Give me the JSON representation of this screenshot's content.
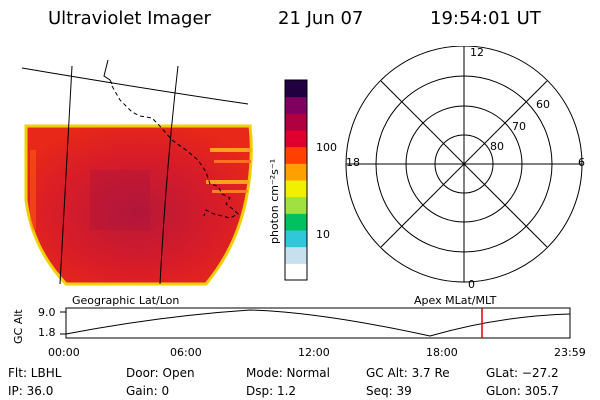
{
  "header": {
    "title": "Ultraviolet Imager",
    "date": "21 Jun 07",
    "time": "19:54:01 UT"
  },
  "colorbar": {
    "unit_label": "photon cm⁻²s⁻¹",
    "ticks": [
      "100",
      "10"
    ],
    "colors": [
      "#ffffff",
      "#c8e0ee",
      "#30c8d8",
      "#00c060",
      "#a0e040",
      "#f0f000",
      "#ffa000",
      "#ff4000",
      "#e00030",
      "#b00040",
      "#800060",
      "#200040"
    ]
  },
  "polar": {
    "mlt_labels": {
      "top": "12",
      "left": "18",
      "right": "6",
      "bottom": "0"
    },
    "lat_labels": [
      "60",
      "70",
      "80"
    ]
  },
  "footer": {
    "left_label": "Geographic Lat/Lon",
    "right_label": "Apex MLat/MLT",
    "yaxis_label": "GC Alt",
    "y_ticks": [
      "9.0",
      "1.8"
    ],
    "x_ticks": [
      "00:00",
      "06:00",
      "12:00",
      "18:00",
      "23:59"
    ],
    "marker_color": "#e00000"
  },
  "info": {
    "flt": "Flt: LBHL",
    "ip": "IP: 36.0",
    "door": "Door: Open",
    "gain": "Gain:  0",
    "mode": "Mode: Normal",
    "dsp": "Dsp:     1.2",
    "gcalt": "GC Alt: 3.7 Re",
    "seq": "Seq: 39",
    "glat": "GLat: −27.2",
    "glon": "GLon: 305.7"
  }
}
